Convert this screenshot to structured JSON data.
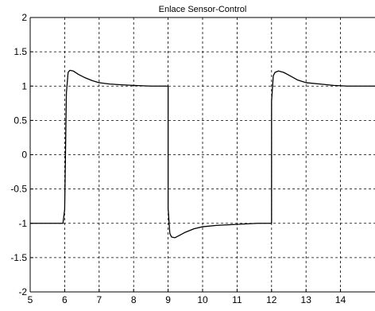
{
  "chart_data": {
    "type": "line",
    "title": "Enlace Sensor-Control",
    "xlabel": "",
    "ylabel": "",
    "xlim": [
      5,
      15
    ],
    "ylim": [
      -2,
      2
    ],
    "x_ticks": [
      5,
      6,
      7,
      8,
      9,
      10,
      11,
      12,
      13,
      14
    ],
    "y_ticks": [
      -2,
      -1.5,
      -1,
      -0.5,
      0,
      0.5,
      1,
      1.5,
      2
    ],
    "grid": true,
    "grid_style": "dashed",
    "colors": {
      "line": "#000000",
      "grid": "#000000",
      "axes": "#000000",
      "background": "#ffffff"
    },
    "series": [
      {
        "x": [
          5.0,
          5.5,
          5.95,
          6.0,
          6.05,
          6.1,
          6.15,
          6.25,
          6.4,
          6.6,
          6.8,
          7.0,
          7.3,
          7.6,
          8.0,
          8.5,
          9.0,
          9.0,
          9.05,
          9.1,
          9.2,
          9.35,
          9.5,
          9.75,
          10.0,
          10.4,
          10.8,
          11.2,
          11.6,
          12.0,
          12.0,
          12.05,
          12.1,
          12.2,
          12.35,
          12.5,
          12.75,
          13.0,
          13.4,
          13.8,
          14.2,
          14.6,
          15.0
        ],
        "y": [
          -1.0,
          -1.0,
          -1.0,
          -0.8,
          0.9,
          1.2,
          1.23,
          1.22,
          1.17,
          1.12,
          1.08,
          1.05,
          1.03,
          1.02,
          1.01,
          1.0,
          1.0,
          -0.78,
          -1.15,
          -1.2,
          -1.21,
          -1.17,
          -1.13,
          -1.08,
          -1.05,
          -1.03,
          -1.02,
          -1.01,
          -1.0,
          -1.0,
          0.78,
          1.15,
          1.2,
          1.22,
          1.2,
          1.16,
          1.09,
          1.05,
          1.03,
          1.01,
          1.0,
          1.0,
          1.0
        ]
      }
    ]
  }
}
